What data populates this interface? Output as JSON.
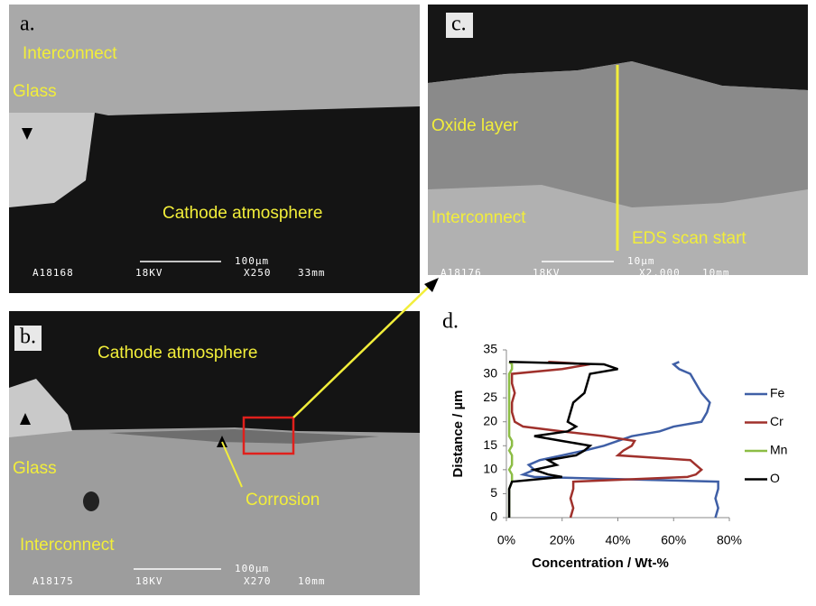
{
  "panels": [
    {
      "label": "a.",
      "texts": [
        "Interconnect",
        "Glass",
        "Cathode atmosphere"
      ],
      "scale_bar": "100µm",
      "info": [
        "A18168",
        "18KV",
        "X250",
        "33mm"
      ]
    },
    {
      "label": "b.",
      "texts": [
        "Cathode atmosphere",
        "Glass",
        "Corrosion",
        "Interconnect"
      ],
      "scale_bar": "100µm",
      "info": [
        "A18175",
        "18KV",
        "X270",
        "10mm"
      ]
    },
    {
      "label": "c.",
      "texts": [
        "Oxide layer",
        "Interconnect",
        "EDS scan start"
      ],
      "scale_bar": "10µm",
      "info": [
        "A18176",
        "18KV",
        "X2,000",
        "10mm"
      ]
    }
  ],
  "chart_panel_label": "d.",
  "chart_data": {
    "type": "line",
    "orientation": "horizontal",
    "xlabel": "Concentration / Wt-%",
    "ylabel": "Distance / µm",
    "y": [
      0,
      2,
      4,
      6,
      7.5,
      8.5,
      9,
      10,
      11,
      12,
      13,
      14,
      15,
      16,
      17,
      18,
      19,
      20,
      22,
      24,
      26,
      28,
      30,
      31,
      32,
      32.5
    ],
    "series": [
      {
        "name": "Fe",
        "color": "#3f5fa6",
        "values": [
          75,
          76,
          75,
          76,
          76,
          10,
          6,
          10,
          8,
          12,
          20,
          28,
          35,
          40,
          45,
          55,
          60,
          70,
          72,
          73,
          70,
          68,
          66,
          62,
          60,
          62
        ]
      },
      {
        "name": "Cr",
        "color": "#a0312c",
        "values": [
          23,
          24,
          23,
          24,
          24,
          65,
          68,
          70,
          68,
          66,
          40,
          42,
          45,
          46,
          35,
          20,
          6,
          3,
          2,
          2,
          3,
          2,
          2,
          20,
          30,
          15
        ]
      },
      {
        "name": "Mn",
        "color": "#8cbd45",
        "values": [
          1,
          1,
          1,
          1,
          2,
          2,
          2,
          1,
          2,
          2,
          2,
          1,
          2,
          2,
          1,
          1,
          1,
          1,
          1,
          1,
          1,
          1,
          1,
          2,
          2,
          1
        ]
      },
      {
        "name": "O",
        "color": "#000000",
        "values": [
          1,
          1,
          1,
          1,
          2,
          20,
          15,
          10,
          18,
          15,
          25,
          28,
          30,
          20,
          10,
          22,
          25,
          22,
          23,
          24,
          28,
          29,
          30,
          40,
          35,
          1
        ]
      }
    ],
    "xlim": [
      0,
      80
    ],
    "xticks": [
      {
        "value": 0,
        "label": "0%"
      },
      {
        "value": 20,
        "label": "20%"
      },
      {
        "value": 40,
        "label": "40%"
      },
      {
        "value": 60,
        "label": "60%"
      },
      {
        "value": 80,
        "label": "80%"
      }
    ],
    "ylim": [
      0,
      35
    ],
    "yticks": [
      0,
      5,
      10,
      15,
      20,
      25,
      30,
      35
    ],
    "grid": false,
    "legend": "right"
  }
}
